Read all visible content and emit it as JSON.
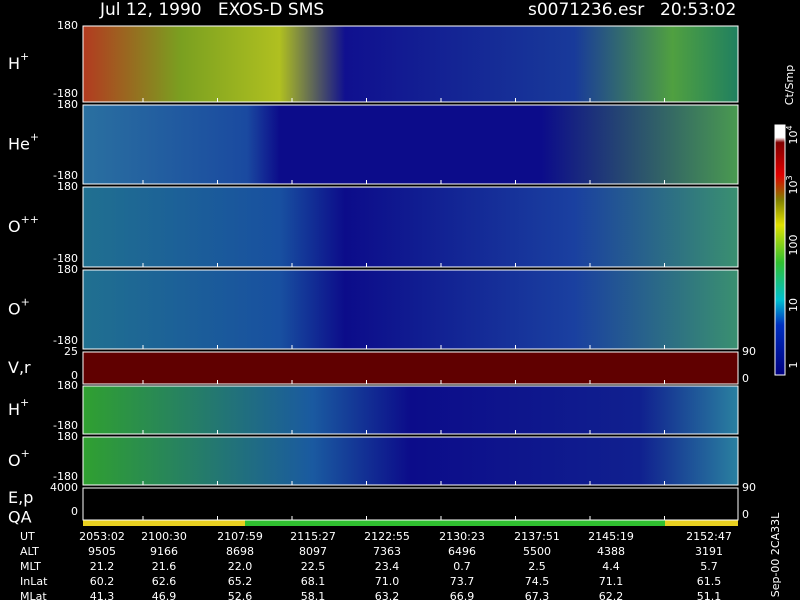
{
  "header": {
    "title": "Jul 12, 1990   EXOS-D SMS",
    "file": "s0071236.esr",
    "time": "20:53:02"
  },
  "panels": [
    {
      "label": "H",
      "sup": "+",
      "ticks": [
        "180",
        "-180"
      ]
    },
    {
      "label": "He",
      "sup": "+",
      "ticks": [
        "180",
        "-180"
      ]
    },
    {
      "label": "O",
      "sup": "++",
      "ticks": [
        "180",
        "-180"
      ]
    },
    {
      "label": "O",
      "sup": "+",
      "ticks": [
        "180",
        "-180"
      ]
    },
    {
      "label": "V,r",
      "ticks": [
        "25",
        "0"
      ],
      "right_ticks": [
        "90",
        "0"
      ]
    },
    {
      "label": "H",
      "sup": "+",
      "ticks": [
        "180",
        "-180"
      ]
    },
    {
      "label": "O",
      "sup": "+",
      "ticks": [
        "180",
        "-180"
      ]
    },
    {
      "label": "E,p",
      "label2": "QA",
      "ticks": [
        "4000",
        "0"
      ],
      "right_ticks": [
        "90",
        "0"
      ]
    }
  ],
  "colorbar": {
    "unit": "Ct/Smp",
    "labels": [
      {
        "base": "10",
        "exp": "4"
      },
      {
        "base": "10",
        "exp": "3"
      },
      {
        "base": "100"
      },
      {
        "base": "10"
      },
      {
        "base": "1"
      }
    ]
  },
  "note": "Sep-00 2CA33L",
  "table": {
    "labels": [
      "UT",
      "ALT",
      "MLT",
      "InLat",
      "MLat"
    ],
    "rows": [
      [
        "2053:02",
        "2100:30",
        "2107:59",
        "2115:27",
        "2122:55",
        "2130:23",
        "2137:51",
        "2145:19",
        "2152:47"
      ],
      [
        "9505",
        "9166",
        "8698",
        "8097",
        "7363",
        "6496",
        "5500",
        "4388",
        "3191"
      ],
      [
        "21.2",
        "21.6",
        "22.0",
        "22.5",
        "23.4",
        "0.7",
        "2.5",
        "4.4",
        "5.7"
      ],
      [
        "60.2",
        "62.6",
        "65.2",
        "68.1",
        "71.0",
        "73.7",
        "74.5",
        "71.1",
        "61.5"
      ],
      [
        "41.3",
        "46.9",
        "52.6",
        "58.1",
        "63.2",
        "66.9",
        "67.3",
        "62.2",
        "51.1"
      ]
    ]
  }
}
